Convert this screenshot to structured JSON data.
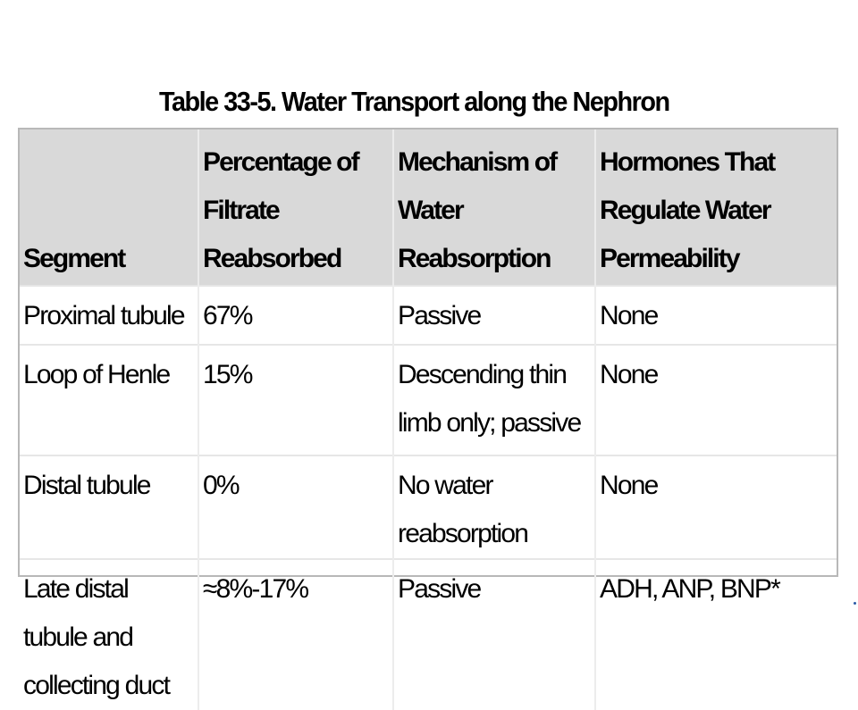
{
  "title": "Table 33-5. Water Transport along the Nephron",
  "headers": [
    "Segment",
    "Percentage of Filtrate Reabsorbed",
    "Mechanism of Water Reabsorption",
    "Hormones That Regulate Water Permeability"
  ],
  "rows": [
    [
      "Proximal tubule",
      "67%",
      "Passive",
      "None"
    ],
    [
      "Loop of Henle",
      "15%",
      "Descending thin limb only; passive",
      "None"
    ],
    [
      "Distal tubule",
      "0%",
      "No water reabsorption",
      "None"
    ],
    [
      "Late distal tubule and collecting duct",
      "≈8%-17%",
      "Passive",
      "ADH, ANP, BNP*"
    ]
  ],
  "colors": {
    "header_bg": "#d9d9d9",
    "border": "#b8b8b8",
    "accent_dot": "#2b5aa6"
  }
}
